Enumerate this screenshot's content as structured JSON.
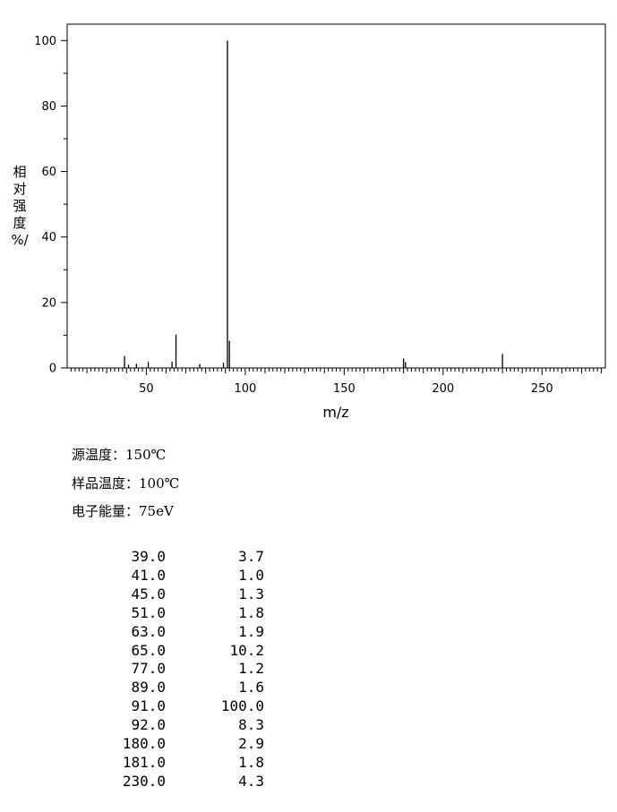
{
  "chart_data": {
    "type": "bar",
    "xlabel": "m/z",
    "ylabel": [
      "相",
      "对",
      "强",
      "度",
      "%/"
    ],
    "xlim": [
      10,
      282
    ],
    "ylim": [
      0,
      105
    ],
    "x_ticks": [
      50,
      100,
      150,
      200,
      250
    ],
    "y_ticks": [
      0,
      20,
      40,
      60,
      80,
      100
    ],
    "grid": false,
    "peaks": [
      {
        "mz": 39,
        "intensity": 3.7
      },
      {
        "mz": 41,
        "intensity": 1.0
      },
      {
        "mz": 45,
        "intensity": 1.3
      },
      {
        "mz": 51,
        "intensity": 1.8
      },
      {
        "mz": 63,
        "intensity": 1.9
      },
      {
        "mz": 65,
        "intensity": 10.2
      },
      {
        "mz": 77,
        "intensity": 1.2
      },
      {
        "mz": 89,
        "intensity": 1.6
      },
      {
        "mz": 91,
        "intensity": 100.0
      },
      {
        "mz": 92,
        "intensity": 8.3
      },
      {
        "mz": 180,
        "intensity": 2.9
      },
      {
        "mz": 181,
        "intensity": 1.8
      },
      {
        "mz": 230,
        "intensity": 4.3
      }
    ]
  },
  "conditions": {
    "source_temp": "源温度：150℃",
    "sample_temp": "样品温度：100℃",
    "electron_energy": "电子能量：75eV"
  },
  "peak_table": [
    {
      "mz": "39.0",
      "intensity": "3.7"
    },
    {
      "mz": "41.0",
      "intensity": "1.0"
    },
    {
      "mz": "45.0",
      "intensity": "1.3"
    },
    {
      "mz": "51.0",
      "intensity": "1.8"
    },
    {
      "mz": "63.0",
      "intensity": "1.9"
    },
    {
      "mz": "65.0",
      "intensity": "10.2"
    },
    {
      "mz": "77.0",
      "intensity": "1.2"
    },
    {
      "mz": "89.0",
      "intensity": "1.6"
    },
    {
      "mz": "91.0",
      "intensity": "100.0"
    },
    {
      "mz": "92.0",
      "intensity": "8.3"
    },
    {
      "mz": "180.0",
      "intensity": "2.9"
    },
    {
      "mz": "181.0",
      "intensity": "1.8"
    },
    {
      "mz": "230.0",
      "intensity": "4.3"
    }
  ]
}
